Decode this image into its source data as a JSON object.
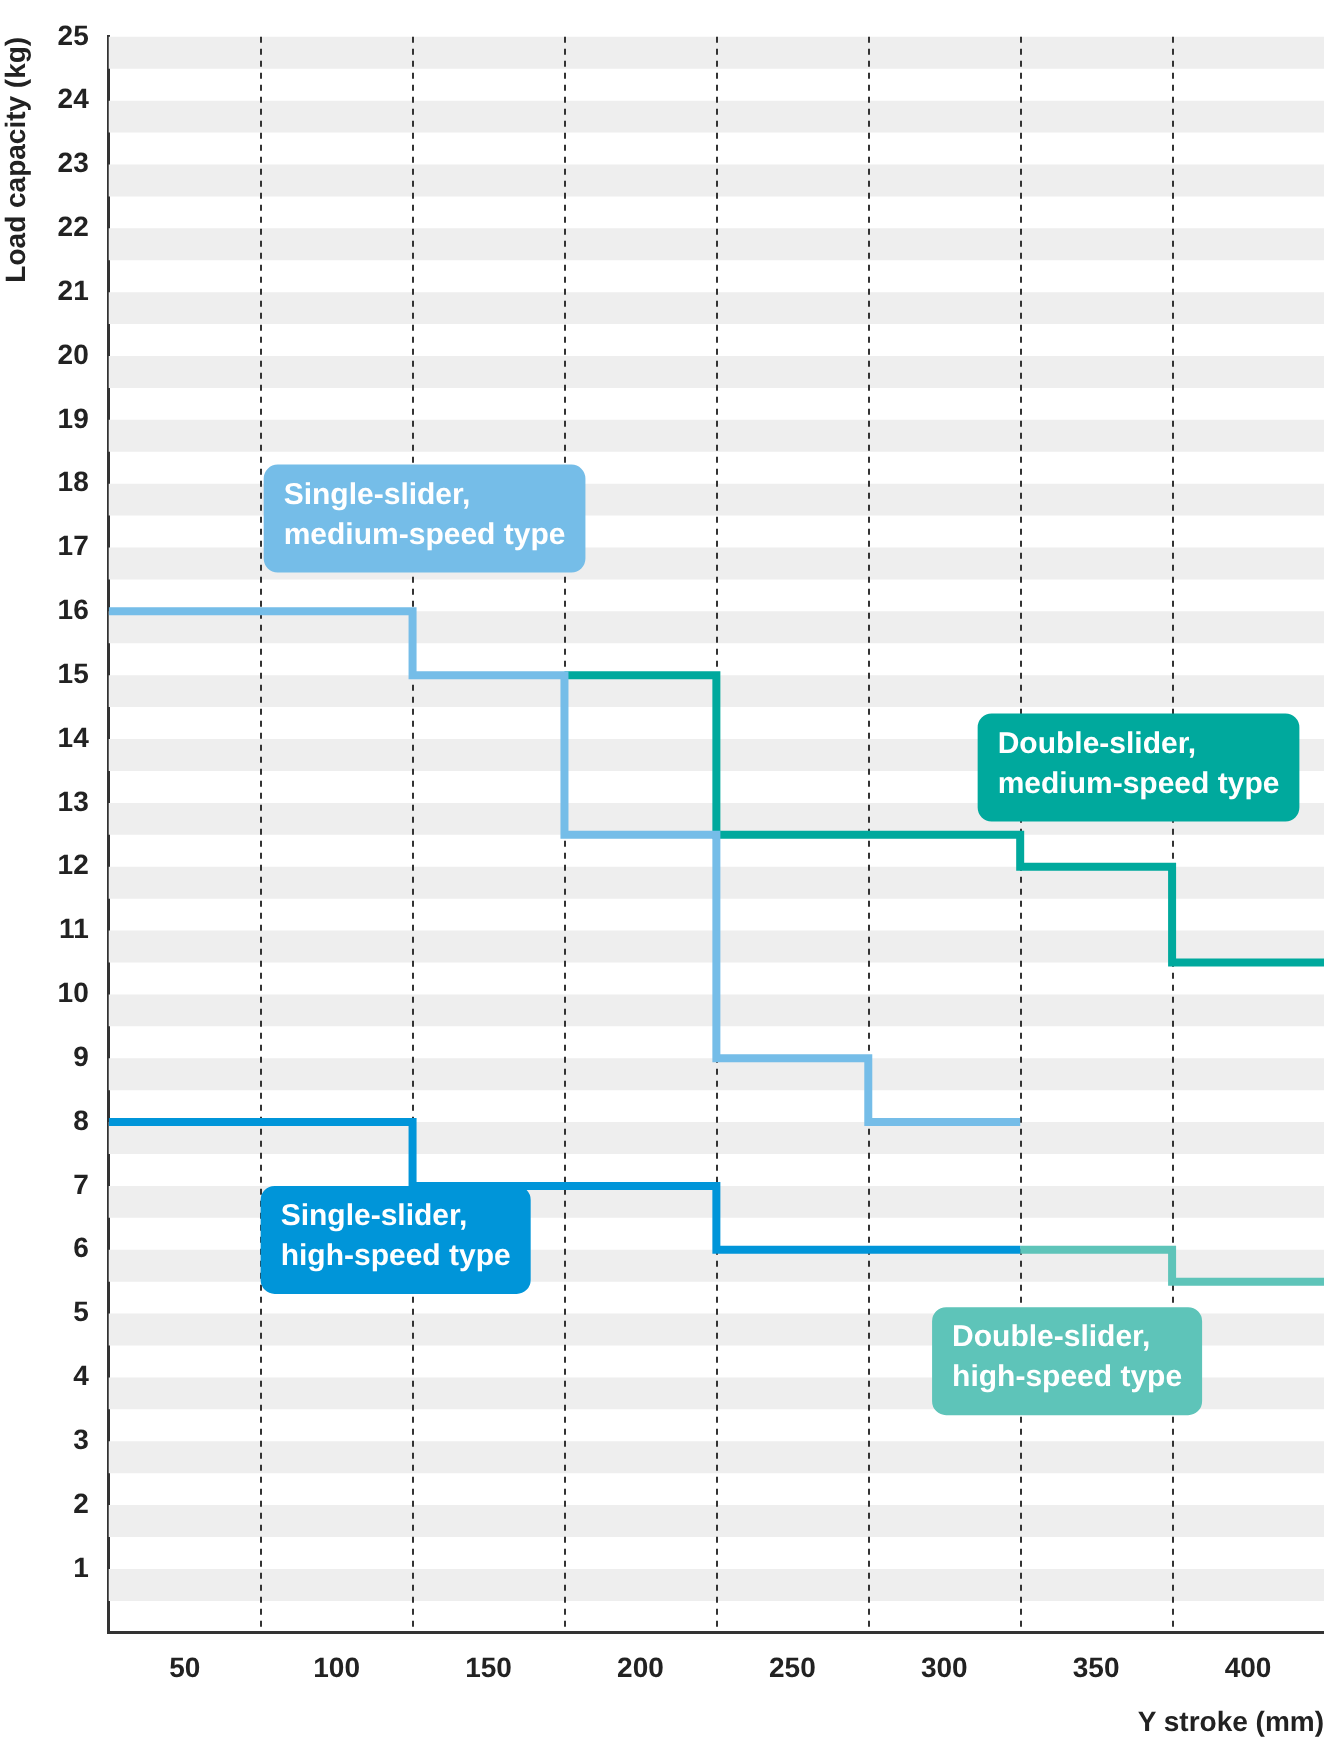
{
  "chart_data": {
    "type": "step",
    "xlabel": "Y stroke (mm)",
    "ylabel": "Load capacity (kg)",
    "xlim": [
      25,
      425
    ],
    "ylim": [
      0,
      25
    ],
    "xticks": [
      50,
      100,
      150,
      200,
      250,
      300,
      350,
      400
    ],
    "yticks": [
      1,
      2,
      3,
      4,
      5,
      6,
      7,
      8,
      9,
      10,
      11,
      12,
      13,
      14,
      15,
      16,
      17,
      18,
      19,
      20,
      21,
      22,
      23,
      24,
      25
    ],
    "series": [
      {
        "name": "Single-slider, medium-speed type",
        "color": "#75bde8",
        "x": [
          25,
          125,
          175,
          225,
          275,
          325
        ],
        "values": [
          16,
          15,
          12.5,
          9,
          8,
          8
        ]
      },
      {
        "name": "Double-slider, medium-speed type",
        "color": "#00a99d",
        "x": [
          175,
          225,
          325,
          375,
          425
        ],
        "values": [
          15,
          12.5,
          12,
          10.5,
          10.5
        ]
      },
      {
        "name": "Single-slider, high-speed type",
        "color": "#0095d9",
        "x": [
          25,
          125,
          225,
          325
        ],
        "values": [
          8,
          7,
          6,
          6
        ]
      },
      {
        "name": "Double-slider, high-speed type",
        "color": "#5ec4b9",
        "x": [
          325,
          375,
          425
        ],
        "values": [
          6,
          5.5,
          5.5
        ]
      }
    ],
    "ref_lines": [
      {
        "axis": "x",
        "value": 75,
        "color": "#333333",
        "line_style": "dashed"
      },
      {
        "axis": "x",
        "value": 125,
        "color": "#333333",
        "line_style": "dashed"
      },
      {
        "axis": "x",
        "value": 175,
        "color": "#333333",
        "line_style": "dashed"
      },
      {
        "axis": "x",
        "value": 225,
        "color": "#333333",
        "line_style": "dashed"
      },
      {
        "axis": "x",
        "value": 275,
        "color": "#333333",
        "line_style": "dashed"
      },
      {
        "axis": "x",
        "value": 325,
        "color": "#333333",
        "line_style": "dashed"
      },
      {
        "axis": "x",
        "value": 375,
        "color": "#333333",
        "line_style": "dashed"
      }
    ],
    "bands": [
      {
        "axis": "y",
        "from": 0.5,
        "to": 1,
        "color": "#eeeeee"
      },
      {
        "axis": "y",
        "from": 1.5,
        "to": 2,
        "color": "#eeeeee"
      },
      {
        "axis": "y",
        "from": 2.5,
        "to": 3,
        "color": "#eeeeee"
      },
      {
        "axis": "y",
        "from": 3.5,
        "to": 4,
        "color": "#eeeeee"
      },
      {
        "axis": "y",
        "from": 4.5,
        "to": 5,
        "color": "#eeeeee"
      },
      {
        "axis": "y",
        "from": 5.5,
        "to": 6,
        "color": "#eeeeee"
      },
      {
        "axis": "y",
        "from": 6.5,
        "to": 7,
        "color": "#eeeeee"
      },
      {
        "axis": "y",
        "from": 7.5,
        "to": 8,
        "color": "#eeeeee"
      },
      {
        "axis": "y",
        "from": 8.5,
        "to": 9,
        "color": "#eeeeee"
      },
      {
        "axis": "y",
        "from": 9.5,
        "to": 10,
        "color": "#eeeeee"
      },
      {
        "axis": "y",
        "from": 10.5,
        "to": 11,
        "color": "#eeeeee"
      },
      {
        "axis": "y",
        "from": 11.5,
        "to": 12,
        "color": "#eeeeee"
      },
      {
        "axis": "y",
        "from": 12.5,
        "to": 13,
        "color": "#eeeeee"
      },
      {
        "axis": "y",
        "from": 13.5,
        "to": 14,
        "color": "#eeeeee"
      },
      {
        "axis": "y",
        "from": 14.5,
        "to": 15,
        "color": "#eeeeee"
      },
      {
        "axis": "y",
        "from": 15.5,
        "to": 16,
        "color": "#eeeeee"
      },
      {
        "axis": "y",
        "from": 16.5,
        "to": 17,
        "color": "#eeeeee"
      },
      {
        "axis": "y",
        "from": 17.5,
        "to": 18,
        "color": "#eeeeee"
      },
      {
        "axis": "y",
        "from": 18.5,
        "to": 19,
        "color": "#eeeeee"
      },
      {
        "axis": "y",
        "from": 19.5,
        "to": 20,
        "color": "#eeeeee"
      },
      {
        "axis": "y",
        "from": 20.5,
        "to": 21,
        "color": "#eeeeee"
      },
      {
        "axis": "y",
        "from": 21.5,
        "to": 22,
        "color": "#eeeeee"
      },
      {
        "axis": "y",
        "from": 22.5,
        "to": 23,
        "color": "#eeeeee"
      },
      {
        "axis": "y",
        "from": 23.5,
        "to": 24,
        "color": "#eeeeee"
      },
      {
        "axis": "y",
        "from": 24.5,
        "to": 25,
        "color": "#eeeeee"
      }
    ]
  }
}
